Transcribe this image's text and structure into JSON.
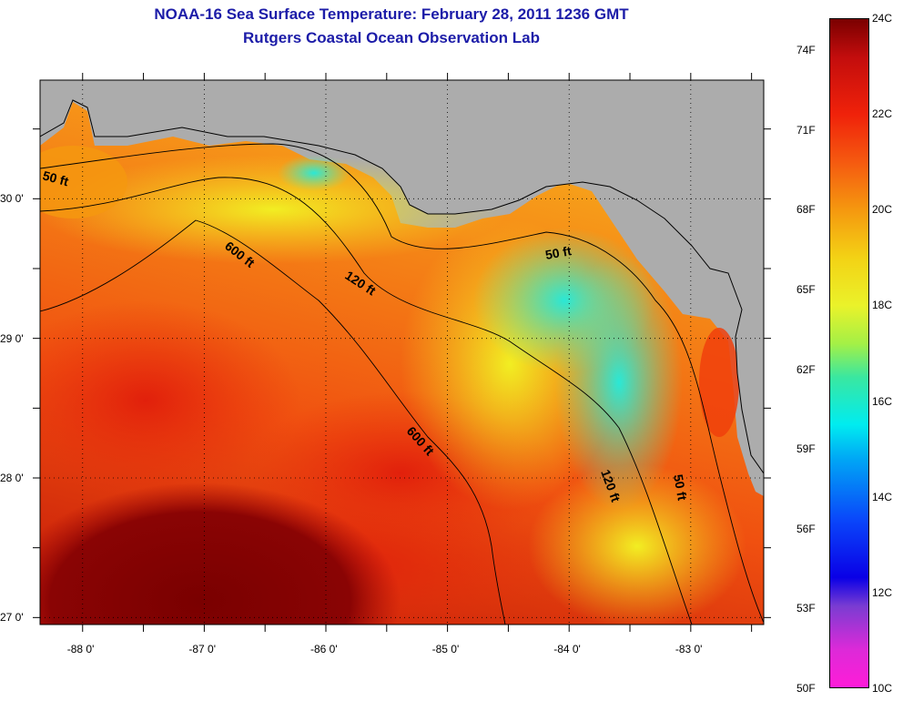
{
  "header": {
    "title": "NOAA-16 Sea Surface Temperature:  February 28, 2011 1236 GMT",
    "subtitle": "Rutgers Coastal Ocean Observation Lab"
  },
  "map": {
    "lon_min": -88.35,
    "lon_max": -82.4,
    "lat_min": 26.95,
    "lat_max": 30.85,
    "x_ticks": [
      {
        "value": -88,
        "label": "-88 0'"
      },
      {
        "value": -87,
        "label": "-87 0'"
      },
      {
        "value": -86,
        "label": "-86 0'"
      },
      {
        "value": -85,
        "label": "-85 0'"
      },
      {
        "value": -84,
        "label": "-84 0'"
      },
      {
        "value": -83,
        "label": "-83 0'"
      }
    ],
    "y_ticks": [
      {
        "value": 30,
        "label": "30 0'"
      },
      {
        "value": 29,
        "label": "29 0'"
      },
      {
        "value": 28,
        "label": "28 0'"
      },
      {
        "value": 27,
        "label": "27 0'"
      }
    ],
    "grid": "dotted",
    "colors": {
      "land": "#acacac",
      "coastline": "#000000",
      "warm_core": "#7a0000",
      "red": "#e2200a",
      "orange": "#f5800c",
      "yellow": "#f2ee22",
      "green": "#90e640",
      "cyan": "#28e6d8"
    },
    "contour_labels": [
      {
        "id": "c50a",
        "text": "50 ft"
      },
      {
        "id": "c600a",
        "text": "600 ft"
      },
      {
        "id": "c120a",
        "text": "120 ft"
      },
      {
        "id": "c50b",
        "text": "50 ft"
      },
      {
        "id": "c600b",
        "text": "600 ft"
      },
      {
        "id": "c120b",
        "text": "120 ft"
      },
      {
        "id": "c50c",
        "text": "50 ft"
      }
    ]
  },
  "colorbar": {
    "fahrenheit_labels": [
      {
        "value": 74,
        "label": "74F"
      },
      {
        "value": 71,
        "label": "71F"
      },
      {
        "value": 68,
        "label": "68F"
      },
      {
        "value": 65,
        "label": "65F"
      },
      {
        "value": 62,
        "label": "62F"
      },
      {
        "value": 59,
        "label": "59F"
      },
      {
        "value": 56,
        "label": "56F"
      },
      {
        "value": 53,
        "label": "53F"
      },
      {
        "value": 50,
        "label": "50F"
      }
    ],
    "celsius_labels": [
      {
        "value": 24,
        "label": "24C"
      },
      {
        "value": 22,
        "label": "22C"
      },
      {
        "value": 20,
        "label": "20C"
      },
      {
        "value": 18,
        "label": "18C"
      },
      {
        "value": 16,
        "label": "16C"
      },
      {
        "value": 14,
        "label": "14C"
      },
      {
        "value": 12,
        "label": "12C"
      },
      {
        "value": 10,
        "label": "10C"
      }
    ],
    "min_c": 10,
    "max_c": 24,
    "stops": [
      {
        "c": 24,
        "color": "#7a0000"
      },
      {
        "c": 23.2,
        "color": "#c30d0d"
      },
      {
        "c": 22,
        "color": "#f0220a"
      },
      {
        "c": 21,
        "color": "#f55a10"
      },
      {
        "c": 20,
        "color": "#f5980f"
      },
      {
        "c": 19,
        "color": "#f3d215"
      },
      {
        "c": 18,
        "color": "#eaf22a"
      },
      {
        "c": 17.2,
        "color": "#a4f046"
      },
      {
        "c": 16.5,
        "color": "#3ae7a0"
      },
      {
        "c": 15.5,
        "color": "#00ecf0"
      },
      {
        "c": 14.8,
        "color": "#00a8f5"
      },
      {
        "c": 13.5,
        "color": "#0a46fa"
      },
      {
        "c": 12.3,
        "color": "#0a00e6"
      },
      {
        "c": 11.7,
        "color": "#7a3cd2"
      },
      {
        "c": 10.8,
        "color": "#dc2ad8"
      },
      {
        "c": 10,
        "color": "#ff1cd8"
      }
    ]
  }
}
